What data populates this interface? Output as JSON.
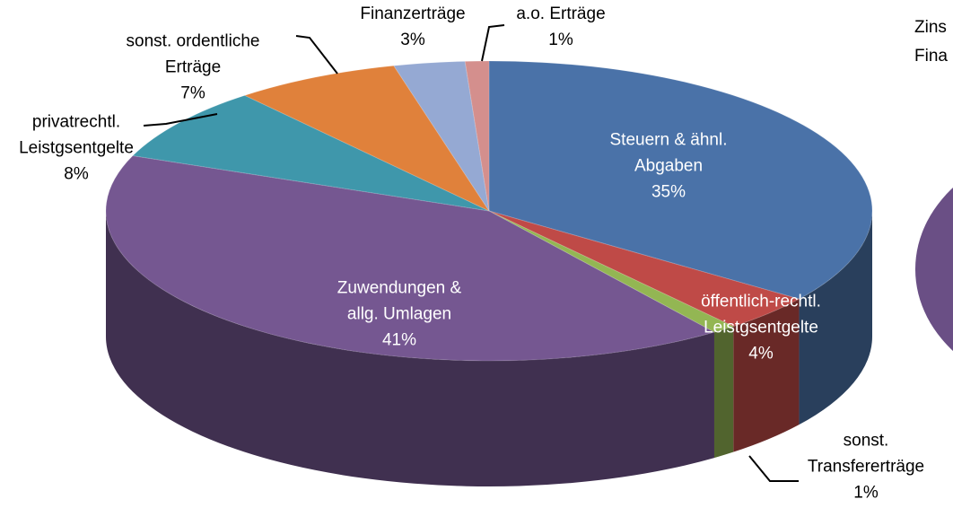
{
  "chart_data": {
    "type": "pie3d",
    "categories": [
      "Steuern & ähnl. Abgaben",
      "öffentlich-rechtl. Leistgsentgelte",
      "sonst. Transfererträge",
      "Zuwendungen & allg. Umlagen",
      "privatrechtl. Leistgsentgelte",
      "sonst. ordentliche Erträge",
      "Finanzerträge",
      "a.o. Erträge"
    ],
    "values": [
      35,
      4,
      1,
      41,
      8,
      7,
      3,
      1
    ],
    "value_labels": [
      "35%",
      "4%",
      "1%",
      "41%",
      "8%",
      "7%",
      "3%",
      "1%"
    ],
    "colors": [
      "#4a72a8",
      "#bf4a47",
      "#93b653",
      "#755791",
      "#3f97ab",
      "#e0813b",
      "#95a9d3",
      "#d48f8d"
    ],
    "annotations": [
      "Zins",
      "Fina"
    ]
  }
}
